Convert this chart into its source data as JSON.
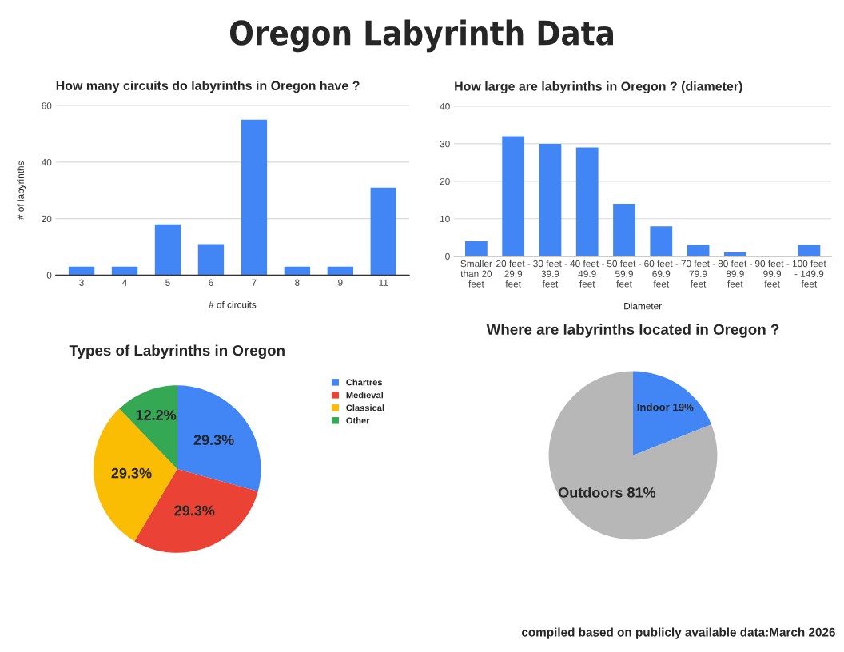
{
  "chart_data": [
    {
      "type": "other",
      "title": "Oregon Labyrinth Data",
      "annotations": [
        "compiled based on publicly available data:March 2026"
      ]
    },
    {
      "type": "bar",
      "title": "How many circuits do labyrinths in Oregon have ?",
      "xlabel": "# of circuits",
      "ylabel": "# of labyrinths",
      "categories": [
        "3",
        "4",
        "5",
        "6",
        "7",
        "8",
        "9",
        "11"
      ],
      "values": [
        3,
        3,
        18,
        11,
        55,
        3,
        3,
        31
      ],
      "color": "#4285f4",
      "ylim": [
        0,
        60
      ],
      "yticks": [
        0,
        20,
        40,
        60
      ],
      "grid": "y"
    },
    {
      "type": "bar",
      "title": "How large are labyrinths in Oregon ? (diameter)",
      "xlabel": "Diameter",
      "categories": [
        "Smaller\nthan 20\nfeet",
        "20 feet -\n29.9\nfeet",
        "30 feet -\n39.9\nfeet",
        "40 feet -\n49.9\nfeet",
        "50 feet -\n59.9\nfeet",
        "60 feet -\n69.9\nfeet",
        "70 feet -\n79.9\nfeet",
        "80 feet -\n89.9\nfeet",
        "90 feet -\n99.9\nfeet",
        "100 feet\n- 149.9\nfeet"
      ],
      "values": [
        4,
        32,
        30,
        29,
        14,
        8,
        3,
        1,
        0,
        3
      ],
      "color": "#4285f4",
      "ylim": [
        0,
        40
      ],
      "yticks": [
        0,
        10,
        20,
        30,
        40
      ],
      "grid": "y"
    },
    {
      "type": "pie",
      "title": "Types of Labyrinths in Oregon",
      "categories": [
        "Chartres",
        "Medieval",
        "Classical",
        "Other"
      ],
      "values": [
        29.3,
        29.3,
        29.3,
        12.2
      ],
      "colors": [
        "#4285f4",
        "#ea4335",
        "#fbbc04",
        "#34a853"
      ],
      "value_labels": [
        "29.3%",
        "29.3%",
        "29.3%",
        "12.2%"
      ],
      "legend": "right"
    },
    {
      "type": "pie",
      "title": "Where are labyrinths located in Oregon ?",
      "categories": [
        null,
        null
      ],
      "values": [
        19,
        81
      ],
      "colors": [
        "#4285f4",
        "#b7b7b7"
      ],
      "value_labels": [
        "Indoor 19%",
        "Outdoors 81%"
      ]
    }
  ]
}
